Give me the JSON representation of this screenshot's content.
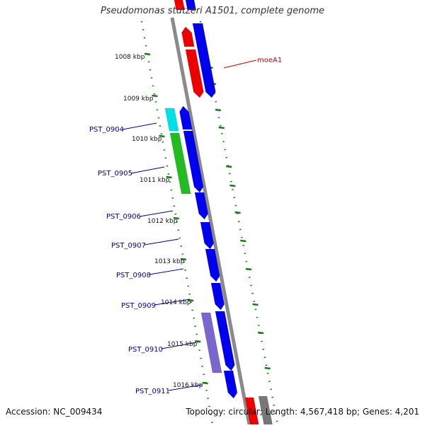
{
  "title": "Pseudomonas stutzeri A1501, complete genome",
  "accession_text": "Accession: NC_009434",
  "topology_text": "Topology: circular; Length: 4,567,418 bp; Genes: 4,201",
  "colors": {
    "backbone": "#8a8a8a",
    "ticks": "#1a7a1a",
    "gene_blue": "#0000ee",
    "gene_red": "#ee0000",
    "gene_cyan": "#00e0e8",
    "gene_green": "#22bb22",
    "gene_purple": "#7a66cc",
    "gene_grey": "#777777",
    "label_blue": "#0000aa",
    "label_red": "#cc0000"
  },
  "scale_labels": [
    "1008 kbp",
    "1009 kbp",
    "1010 kbp",
    "1011 kbp",
    "1012 kbp",
    "1013 kbp",
    "1014 kbp",
    "1015 kbp",
    "1016 kbp"
  ],
  "gene_labels": [
    {
      "text": "moeA1",
      "color": "red"
    },
    {
      "text": "PST_0904",
      "color": "blue"
    },
    {
      "text": "PST_0905",
      "color": "blue"
    },
    {
      "text": "PST_0906",
      "color": "blue"
    },
    {
      "text": "PST_0907",
      "color": "blue"
    },
    {
      "text": "PST_0908",
      "color": "blue"
    },
    {
      "text": "PST_0909",
      "color": "blue"
    },
    {
      "text": "PST_0910",
      "color": "blue"
    },
    {
      "text": "PST_0911",
      "color": "blue"
    }
  ]
}
